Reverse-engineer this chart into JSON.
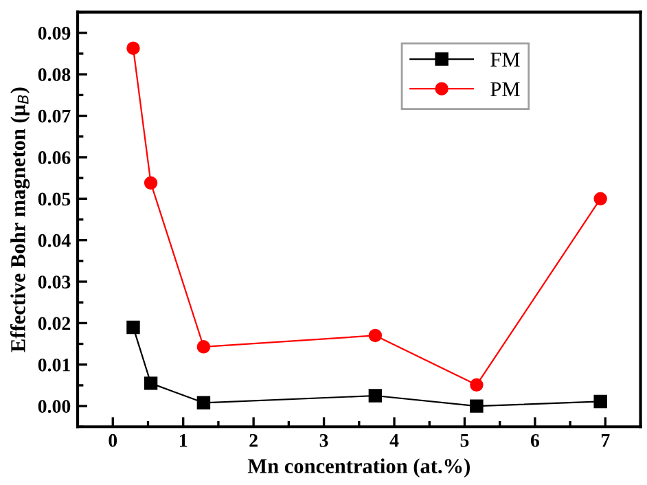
{
  "chart_data": {
    "type": "line",
    "xlabel": "Mn concentration (at.%)",
    "ylabel": "Effective Bohr magneton (μ$_{B}$)",
    "x": [
      0.29,
      0.54,
      1.29,
      3.73,
      5.17,
      6.93
    ],
    "series": [
      {
        "name": "FM",
        "color": "#000000",
        "marker": "square",
        "values": [
          0.019,
          0.0055,
          0.0008,
          0.0025,
          0.0,
          0.0011
        ]
      },
      {
        "name": "PM",
        "color": "#ff0000",
        "marker": "circle",
        "values": [
          0.0863,
          0.0538,
          0.0143,
          0.017,
          0.0051,
          0.05
        ]
      }
    ],
    "xlim": [
      -0.5,
      7.5
    ],
    "xticks": [
      0,
      1,
      2,
      3,
      4,
      5,
      6,
      7
    ],
    "ylim": [
      -0.005,
      0.095
    ],
    "yticks": [
      {
        "value": 0,
        "label": "0.00"
      },
      {
        "value": 0.01,
        "label": "0.01"
      },
      {
        "value": 0.02,
        "label": "0.02"
      },
      {
        "value": 0.03,
        "label": "0.03"
      },
      {
        "value": 0.04,
        "label": "0.04"
      },
      {
        "value": 0.05,
        "label": "0.05"
      },
      {
        "value": 0.06,
        "label": "0.06"
      },
      {
        "value": 0.07,
        "label": "0.07"
      },
      {
        "value": 0.08,
        "label": "0.08"
      },
      {
        "value": 0.09,
        "label": "0.09"
      }
    ],
    "grid": false,
    "legend": "top right",
    "line_style": "solid"
  }
}
